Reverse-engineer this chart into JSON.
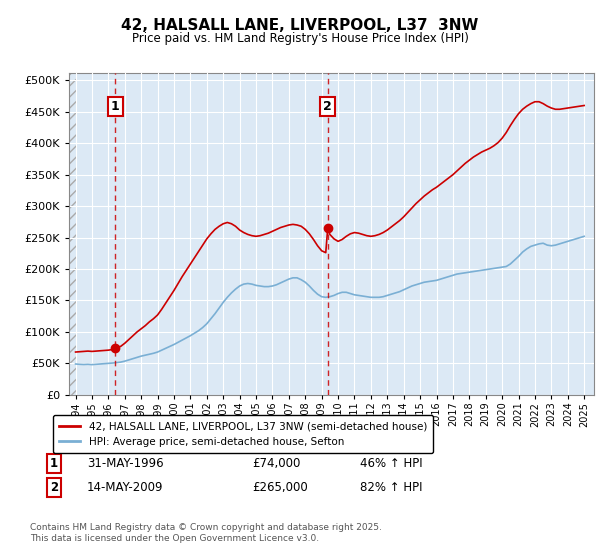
{
  "title": "42, HALSALL LANE, LIVERPOOL, L37  3NW",
  "subtitle": "Price paid vs. HM Land Registry's House Price Index (HPI)",
  "ytick_values": [
    0,
    50000,
    100000,
    150000,
    200000,
    250000,
    300000,
    350000,
    400000,
    450000,
    500000
  ],
  "ylim": [
    0,
    512000
  ],
  "xlim_start": 1993.6,
  "xlim_end": 2025.6,
  "background_color": "#dce9f5",
  "grid_color": "#ffffff",
  "legend_label_red": "42, HALSALL LANE, LIVERPOOL, L37 3NW (semi-detached house)",
  "legend_label_blue": "HPI: Average price, semi-detached house, Sefton",
  "sale1_date": "31-MAY-1996",
  "sale1_price": 74000,
  "sale1_pct": "46% ↑ HPI",
  "sale2_date": "14-MAY-2009",
  "sale2_price": 265000,
  "sale2_pct": "82% ↑ HPI",
  "vline1_x": 1996.42,
  "vline2_x": 2009.37,
  "sale1_y": 74000,
  "sale2_y": 265000,
  "footer": "Contains HM Land Registry data © Crown copyright and database right 2025.\nThis data is licensed under the Open Government Licence v3.0.",
  "red_line_color": "#cc0000",
  "blue_line_color": "#7aafd4",
  "hpi_x": [
    1994.0,
    1994.25,
    1994.5,
    1994.75,
    1995.0,
    1995.25,
    1995.5,
    1995.75,
    1996.0,
    1996.25,
    1996.5,
    1996.75,
    1997.0,
    1997.25,
    1997.5,
    1997.75,
    1998.0,
    1998.25,
    1998.5,
    1998.75,
    1999.0,
    1999.25,
    1999.5,
    1999.75,
    2000.0,
    2000.25,
    2000.5,
    2000.75,
    2001.0,
    2001.25,
    2001.5,
    2001.75,
    2002.0,
    2002.25,
    2002.5,
    2002.75,
    2003.0,
    2003.25,
    2003.5,
    2003.75,
    2004.0,
    2004.25,
    2004.5,
    2004.75,
    2005.0,
    2005.25,
    2005.5,
    2005.75,
    2006.0,
    2006.25,
    2006.5,
    2006.75,
    2007.0,
    2007.25,
    2007.5,
    2007.75,
    2008.0,
    2008.25,
    2008.5,
    2008.75,
    2009.0,
    2009.25,
    2009.5,
    2009.75,
    2010.0,
    2010.25,
    2010.5,
    2010.75,
    2011.0,
    2011.25,
    2011.5,
    2011.75,
    2012.0,
    2012.25,
    2012.5,
    2012.75,
    2013.0,
    2013.25,
    2013.5,
    2013.75,
    2014.0,
    2014.25,
    2014.5,
    2014.75,
    2015.0,
    2015.25,
    2015.5,
    2015.75,
    2016.0,
    2016.25,
    2016.5,
    2016.75,
    2017.0,
    2017.25,
    2017.5,
    2017.75,
    2018.0,
    2018.25,
    2018.5,
    2018.75,
    2019.0,
    2019.25,
    2019.5,
    2019.75,
    2020.0,
    2020.25,
    2020.5,
    2020.75,
    2021.0,
    2021.25,
    2021.5,
    2021.75,
    2022.0,
    2022.25,
    2022.5,
    2022.75,
    2023.0,
    2023.25,
    2023.5,
    2023.75,
    2024.0,
    2024.25,
    2024.5,
    2024.75,
    2025.0
  ],
  "hpi_y": [
    49000,
    48500,
    48200,
    48500,
    48000,
    48500,
    49000,
    49500,
    50000,
    50500,
    51200,
    52000,
    53500,
    55500,
    57500,
    59500,
    61500,
    63000,
    64500,
    66000,
    68000,
    71000,
    74000,
    77000,
    80000,
    83500,
    87000,
    90500,
    94000,
    98000,
    102000,
    107000,
    113000,
    121000,
    129000,
    138000,
    147000,
    155000,
    162000,
    168000,
    173000,
    176000,
    177000,
    176000,
    174000,
    173000,
    172000,
    172000,
    173000,
    175000,
    178000,
    181000,
    184000,
    186000,
    186000,
    183000,
    179000,
    173000,
    166000,
    160000,
    156000,
    155000,
    156000,
    158000,
    161000,
    163000,
    163000,
    161000,
    159000,
    158000,
    157000,
    156000,
    155000,
    155000,
    155000,
    156000,
    158000,
    160000,
    162000,
    164000,
    167000,
    170000,
    173000,
    175000,
    177000,
    179000,
    180000,
    181000,
    182000,
    184000,
    186000,
    188000,
    190000,
    192000,
    193000,
    194000,
    195000,
    196000,
    197000,
    198000,
    199000,
    200000,
    201000,
    202000,
    203000,
    204000,
    208000,
    214000,
    220000,
    227000,
    232000,
    236000,
    238000,
    240000,
    241000,
    238000,
    237000,
    238000,
    240000,
    242000,
    244000,
    246000,
    248000,
    250000,
    252000
  ],
  "prop_x": [
    1994.0,
    1994.25,
    1994.5,
    1994.75,
    1995.0,
    1995.25,
    1995.5,
    1995.75,
    1996.0,
    1996.25,
    1996.42,
    1996.5,
    1996.75,
    1997.0,
    1997.25,
    1997.5,
    1997.75,
    1998.0,
    1998.25,
    1998.5,
    1998.75,
    1999.0,
    1999.25,
    1999.5,
    1999.75,
    2000.0,
    2000.25,
    2000.5,
    2000.75,
    2001.0,
    2001.25,
    2001.5,
    2001.75,
    2002.0,
    2002.25,
    2002.5,
    2002.75,
    2003.0,
    2003.25,
    2003.5,
    2003.75,
    2004.0,
    2004.25,
    2004.5,
    2004.75,
    2005.0,
    2005.25,
    2005.5,
    2005.75,
    2006.0,
    2006.25,
    2006.5,
    2006.75,
    2007.0,
    2007.25,
    2007.5,
    2007.75,
    2008.0,
    2008.25,
    2008.5,
    2008.75,
    2009.0,
    2009.25,
    2009.37,
    2009.5,
    2009.75,
    2010.0,
    2010.25,
    2010.5,
    2010.75,
    2011.0,
    2011.25,
    2011.5,
    2011.75,
    2012.0,
    2012.25,
    2012.5,
    2012.75,
    2013.0,
    2013.25,
    2013.5,
    2013.75,
    2014.0,
    2014.25,
    2014.5,
    2014.75,
    2015.0,
    2015.25,
    2015.5,
    2015.75,
    2016.0,
    2016.25,
    2016.5,
    2016.75,
    2017.0,
    2017.25,
    2017.5,
    2017.75,
    2018.0,
    2018.25,
    2018.5,
    2018.75,
    2019.0,
    2019.25,
    2019.5,
    2019.75,
    2020.0,
    2020.25,
    2020.5,
    2020.75,
    2021.0,
    2021.25,
    2021.5,
    2021.75,
    2022.0,
    2022.25,
    2022.5,
    2022.75,
    2023.0,
    2023.25,
    2023.5,
    2023.75,
    2024.0,
    2024.25,
    2024.5,
    2024.75,
    2025.0
  ],
  "prop_y": [
    68000,
    68500,
    69000,
    69500,
    69000,
    69500,
    70000,
    70500,
    71000,
    72000,
    74000,
    75000,
    77000,
    82000,
    88000,
    94000,
    100000,
    105000,
    110000,
    116000,
    121000,
    127000,
    136000,
    146000,
    156000,
    166000,
    177000,
    188000,
    198000,
    208000,
    218000,
    228000,
    238000,
    248000,
    256000,
    263000,
    268000,
    272000,
    274000,
    272000,
    268000,
    262000,
    258000,
    255000,
    253000,
    252000,
    253000,
    255000,
    257000,
    260000,
    263000,
    266000,
    268000,
    270000,
    271000,
    270000,
    268000,
    263000,
    256000,
    247000,
    237000,
    229000,
    226000,
    265000,
    255000,
    248000,
    244000,
    247000,
    252000,
    256000,
    258000,
    257000,
    255000,
    253000,
    252000,
    253000,
    255000,
    258000,
    262000,
    267000,
    272000,
    277000,
    283000,
    290000,
    297000,
    304000,
    310000,
    316000,
    321000,
    326000,
    330000,
    335000,
    340000,
    345000,
    350000,
    356000,
    362000,
    368000,
    373000,
    378000,
    382000,
    386000,
    389000,
    392000,
    396000,
    401000,
    408000,
    417000,
    428000,
    438000,
    447000,
    454000,
    459000,
    463000,
    466000,
    466000,
    463000,
    459000,
    456000,
    454000,
    454000,
    455000,
    456000,
    457000,
    458000,
    459000,
    460000
  ]
}
